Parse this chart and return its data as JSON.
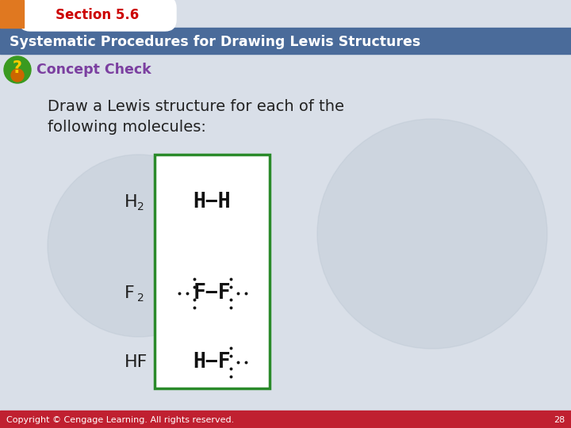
{
  "section_text": "Section 5.6",
  "title_text": "Systematic Procedures for Drawing Lewis Structures",
  "concept_check_text": "Concept Check",
  "body_text_line1": "Draw a Lewis structure for each of the",
  "body_text_line2": "following molecules:",
  "copyright_text": "Copyright © Cengage Learning. All rights reserved.",
  "page_number": "28",
  "bg_color": "#d9dfe8",
  "header_orange": "#e07820",
  "header_blue": "#4a6b9a",
  "title_color": "#ffffff",
  "section_color": "#cc0000",
  "concept_color": "#7b3fa0",
  "body_color": "#222222",
  "green_box_color": "#2a8a2a",
  "footer_color": "#c02030",
  "footer_text_color": "#ffffff",
  "lewis_color": "#111111",
  "watermark_color": "#b8c4d0"
}
